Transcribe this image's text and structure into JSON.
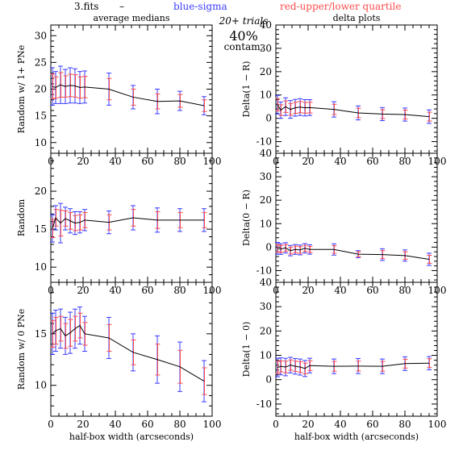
{
  "header": {
    "file": "3.fits",
    "dash": "–",
    "blue_label": "blue-sigma",
    "red_label": "red-upper/lower quartile",
    "trials": "20+ trials",
    "contam_pct": "40%",
    "contam_word": "contam.",
    "blue_color": "#3b3bff",
    "red_color": "#ff4b4b"
  },
  "chart_data": [
    {
      "type": "line",
      "title": "average medians",
      "ylabel": "Random w/ 1+ PNe",
      "xlabel": "",
      "xlim": [
        0,
        100
      ],
      "ylim": [
        8,
        32
      ],
      "x_ticks": [
        0,
        20,
        40,
        60,
        80,
        100
      ],
      "y_ticks": [
        10,
        15,
        20,
        25,
        30
      ],
      "x": [
        1,
        3,
        6,
        9,
        12,
        15,
        18,
        21,
        36,
        51,
        66,
        80,
        95
      ],
      "y": [
        20.5,
        20.3,
        20.8,
        20.5,
        20.7,
        20.6,
        20.3,
        20.4,
        20.0,
        18.5,
        17.7,
        17.8,
        16.9
      ],
      "err_blue": [
        3.5,
        3.0,
        3.5,
        3.2,
        3.3,
        3.2,
        3.0,
        3.0,
        3.0,
        2.2,
        2.3,
        1.8,
        1.7
      ],
      "err_red": [
        2.3,
        2.0,
        2.3,
        2.0,
        2.1,
        2.1,
        2.0,
        2.0,
        2.0,
        1.5,
        1.4,
        1.2,
        1.1
      ]
    },
    {
      "type": "line",
      "title": "delta plots",
      "ylabel": "Delta(1 − R)",
      "xlabel": "",
      "xlim": [
        0,
        100
      ],
      "ylim": [
        -15,
        40
      ],
      "x_ticks": [
        0,
        20,
        40,
        60,
        80,
        100
      ],
      "y_ticks": [
        -10,
        0,
        10,
        20,
        30,
        40
      ],
      "x": [
        1,
        3,
        6,
        9,
        12,
        15,
        18,
        21,
        36,
        51,
        66,
        80,
        95
      ],
      "y": [
        5.8,
        3.5,
        5.0,
        3.8,
        4.5,
        4.8,
        4.5,
        4.6,
        3.8,
        2.3,
        1.8,
        1.6,
        0.7
      ],
      "err_blue": [
        4.0,
        3.5,
        3.8,
        3.8,
        3.6,
        3.6,
        3.5,
        3.4,
        3.3,
        3.0,
        2.8,
        2.8,
        2.9
      ],
      "err_red": [
        2.6,
        2.3,
        2.5,
        2.5,
        2.4,
        2.4,
        2.3,
        2.3,
        2.2,
        2.0,
        1.9,
        1.9,
        1.9
      ]
    },
    {
      "type": "line",
      "title": "",
      "ylabel": "Random",
      "xlabel": "",
      "xlim": [
        0,
        100
      ],
      "ylim": [
        8,
        25
      ],
      "x_ticks": [
        0,
        20,
        40,
        60,
        80,
        100
      ],
      "y_ticks": [
        10,
        15,
        20
      ],
      "x": [
        1,
        3,
        6,
        9,
        12,
        15,
        18,
        21,
        36,
        51,
        66,
        80,
        95
      ],
      "y": [
        15.1,
        16.5,
        15.8,
        16.4,
        16.1,
        15.8,
        15.9,
        16.2,
        15.9,
        16.5,
        16.2,
        16.2,
        16.2
      ],
      "err_blue": [
        1.8,
        1.6,
        2.6,
        1.5,
        1.6,
        1.5,
        1.4,
        1.4,
        1.5,
        1.6,
        1.6,
        1.5,
        1.5
      ],
      "err_red": [
        1.2,
        1.1,
        1.7,
        1.0,
        1.1,
        1.0,
        1.0,
        1.0,
        1.0,
        1.1,
        1.1,
        1.0,
        1.0
      ]
    },
    {
      "type": "line",
      "title": "",
      "ylabel": "Delta(0 − R)",
      "xlabel": "",
      "xlim": [
        0,
        100
      ],
      "ylim": [
        -15,
        40
      ],
      "x_ticks": [
        0,
        20,
        40,
        60,
        80,
        100
      ],
      "y_ticks": [
        -10,
        0,
        10,
        20,
        30,
        40
      ],
      "x": [
        1,
        3,
        6,
        9,
        12,
        15,
        18,
        21,
        36,
        51,
        66,
        80,
        95
      ],
      "y": [
        -0.5,
        -0.8,
        -0.3,
        -1.5,
        -1.0,
        -1.2,
        -0.5,
        -1.0,
        -1.0,
        -3.0,
        -3.2,
        -3.6,
        -5.2
      ],
      "err_blue": [
        2.5,
        2.3,
        2.2,
        2.2,
        2.1,
        2.1,
        2.0,
        2.0,
        2.4,
        1.5,
        2.5,
        2.4,
        2.6
      ],
      "err_red": [
        1.6,
        1.5,
        1.4,
        1.4,
        1.4,
        1.4,
        1.3,
        1.3,
        1.6,
        1.0,
        1.7,
        1.6,
        1.7
      ]
    },
    {
      "type": "line",
      "title": "",
      "ylabel": "Random w/ 0 PNe",
      "xlabel": "half-box width (arcseconds)",
      "xlim": [
        0,
        100
      ],
      "ylim": [
        7,
        20
      ],
      "x_ticks": [
        0,
        20,
        40,
        60,
        80,
        100
      ],
      "y_ticks": [
        10,
        15
      ],
      "x": [
        1,
        3,
        6,
        9,
        12,
        15,
        18,
        21,
        36,
        51,
        66,
        80,
        95
      ],
      "y": [
        15.0,
        15.3,
        15.5,
        14.8,
        15.1,
        15.5,
        15.8,
        15.0,
        14.6,
        13.2,
        12.5,
        11.8,
        10.4
      ],
      "err_blue": [
        2.0,
        2.0,
        1.9,
        1.8,
        2.0,
        1.9,
        1.8,
        1.7,
        2.0,
        1.8,
        2.3,
        2.4,
        2.0
      ],
      "err_red": [
        1.3,
        1.3,
        1.2,
        1.2,
        1.3,
        1.2,
        1.2,
        1.1,
        1.3,
        1.2,
        1.5,
        1.6,
        1.3
      ]
    },
    {
      "type": "line",
      "title": "",
      "ylabel": "Delta(1 − 0)",
      "xlabel": "half-box width (arcseconds)",
      "xlim": [
        0,
        100
      ],
      "ylim": [
        -15,
        40
      ],
      "x_ticks": [
        0,
        20,
        40,
        60,
        80,
        100
      ],
      "y_ticks": [
        -10,
        0,
        10,
        20,
        30,
        40
      ],
      "x": [
        1,
        3,
        6,
        9,
        12,
        15,
        18,
        21,
        36,
        51,
        66,
        80,
        95
      ],
      "y": [
        5.0,
        5.5,
        5.2,
        6.0,
        5.5,
        5.2,
        4.6,
        5.8,
        5.5,
        5.6,
        5.5,
        6.6,
        6.8
      ],
      "err_blue": [
        3.8,
        3.5,
        3.6,
        3.2,
        3.2,
        3.3,
        3.3,
        3.0,
        3.0,
        3.1,
        3.0,
        2.8,
        2.7
      ],
      "err_red": [
        2.5,
        2.3,
        2.4,
        2.1,
        2.1,
        2.2,
        2.2,
        2.0,
        2.0,
        2.0,
        2.0,
        1.8,
        1.8
      ]
    }
  ]
}
